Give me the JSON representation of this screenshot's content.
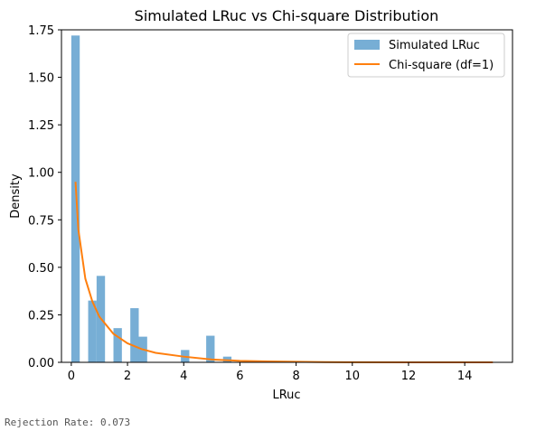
{
  "footer": {
    "note": "Rejection Rate: 0.073"
  },
  "colors": {
    "histogram": "#77aed5",
    "curve": "#ff7f0e",
    "axis": "#000000"
  },
  "chart_data": {
    "type": "bar",
    "title": "Simulated LRuc vs Chi-square Distribution",
    "xlabel": "LRuc",
    "ylabel": "Density",
    "xlim": [
      -0.35,
      15.7
    ],
    "ylim": [
      0,
      1.75
    ],
    "xticks": [
      0,
      2,
      4,
      6,
      8,
      10,
      12,
      14
    ],
    "xtick_labels": [
      "0",
      "2",
      "4",
      "6",
      "8",
      "10",
      "12",
      "14"
    ],
    "yticks": [
      0,
      0.25,
      0.5,
      0.75,
      1.0,
      1.25,
      1.5,
      1.75
    ],
    "ytick_labels": [
      "0.00",
      "0.25",
      "0.50",
      "0.75",
      "1.00",
      "1.25",
      "1.50",
      "1.75"
    ],
    "grid": false,
    "legend_position": "top-right",
    "legend": [
      "Simulated LRuc",
      "Chi-square (df=1)"
    ],
    "series": [
      {
        "name": "Simulated LRuc",
        "kind": "histogram",
        "bin_width": 0.3,
        "bins": [
          {
            "x0": 0.0,
            "x1": 0.3,
            "density": 1.72
          },
          {
            "x0": 0.6,
            "x1": 0.9,
            "density": 0.325
          },
          {
            "x0": 0.9,
            "x1": 1.2,
            "density": 0.455
          },
          {
            "x0": 1.5,
            "x1": 1.8,
            "density": 0.18
          },
          {
            "x0": 2.1,
            "x1": 2.4,
            "density": 0.285
          },
          {
            "x0": 2.4,
            "x1": 2.7,
            "density": 0.135
          },
          {
            "x0": 3.9,
            "x1": 4.2,
            "density": 0.065
          },
          {
            "x0": 4.8,
            "x1": 5.1,
            "density": 0.14
          },
          {
            "x0": 5.4,
            "x1": 5.7,
            "density": 0.03
          }
        ]
      },
      {
        "name": "Chi-square (df=1)",
        "kind": "line",
        "x": [
          0.15,
          0.25,
          0.5,
          0.75,
          1.0,
          1.5,
          2.0,
          2.5,
          3.0,
          4.0,
          5.0,
          6.0,
          7.0,
          8.0,
          9.0,
          10.0,
          12.0,
          15.0
        ],
        "y": [
          0.95,
          0.7,
          0.44,
          0.32,
          0.24,
          0.15,
          0.1,
          0.07,
          0.05,
          0.03,
          0.015,
          0.008,
          0.005,
          0.003,
          0.001,
          0.0008,
          0.0003,
          0.0001
        ]
      }
    ]
  }
}
